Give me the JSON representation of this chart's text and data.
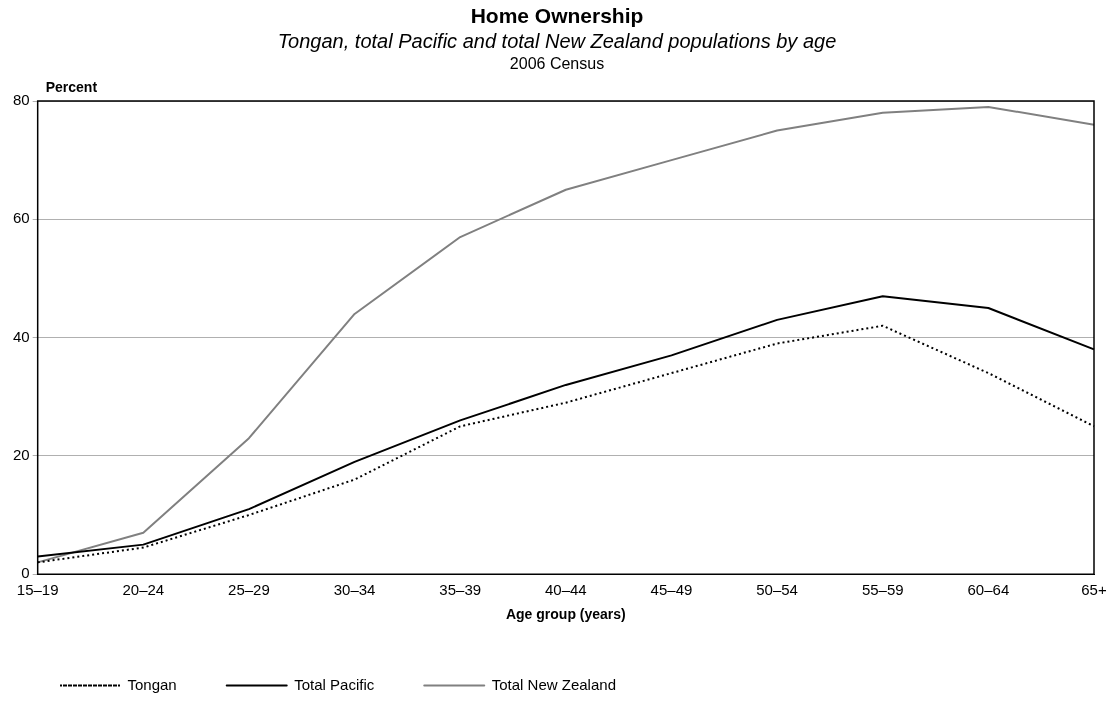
{
  "chart_data": {
    "type": "line",
    "title": "Home Ownership",
    "subtitle": "Tongan, total Pacific and total New Zealand populations by age",
    "annotations": [
      "2006 Census"
    ],
    "xlabel": "Age group (years)",
    "ylabel": "Percent",
    "categories": [
      "15–19",
      "20–24",
      "25–29",
      "30–34",
      "35–39",
      "40–44",
      "45–49",
      "50–54",
      "55–59",
      "60–64",
      "65+"
    ],
    "series": [
      {
        "name": "Tongan",
        "color": "#000000",
        "line_style": "dotted",
        "values": [
          2,
          4.5,
          10,
          16,
          25,
          29,
          34,
          39,
          42,
          34,
          25
        ]
      },
      {
        "name": "Total Pacific",
        "color": "#000000",
        "values": [
          3,
          5,
          11,
          19,
          26,
          32,
          37,
          43,
          47,
          45,
          38
        ]
      },
      {
        "name": "Total New Zealand",
        "color": "#808080",
        "values": [
          2,
          7,
          23,
          44,
          57,
          65,
          70,
          75,
          78,
          79,
          76
        ]
      }
    ],
    "ylim": [
      0,
      80
    ],
    "yticks": [
      0,
      20,
      40,
      60,
      80
    ],
    "grid": "y",
    "legend": "bottom",
    "marker": "none",
    "line_style": "solid"
  }
}
